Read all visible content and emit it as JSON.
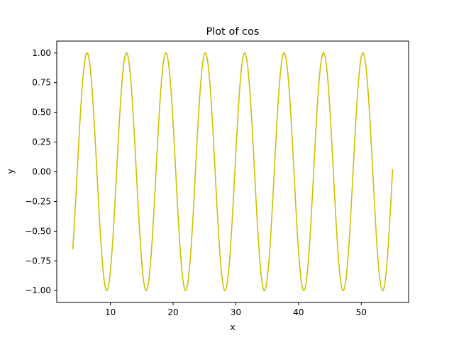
{
  "chart_data": {
    "type": "line",
    "title": "Plot of cos",
    "xlabel": "x",
    "ylabel": "y",
    "xlim": [
      1.45,
      57.55
    ],
    "ylim": [
      -1.1,
      1.1
    ],
    "xticks": [
      10,
      20,
      30,
      40,
      50
    ],
    "yticks": [
      -1.0,
      -0.75,
      -0.5,
      -0.25,
      0.0,
      0.25,
      0.5,
      0.75,
      1.0
    ],
    "xtick_labels": [
      "10",
      "20",
      "30",
      "40",
      "50"
    ],
    "ytick_labels": [
      "−1.00",
      "−0.75",
      "−0.50",
      "−0.25",
      "0.00",
      "0.25",
      "0.50",
      "0.75",
      "1.00"
    ],
    "grid": false,
    "series": [
      {
        "function": "cos(x)",
        "x_start": 4.0,
        "x_end": 55.0,
        "y_start": -0.65,
        "y_end": 0.02,
        "color": "#cfbf00"
      }
    ]
  }
}
